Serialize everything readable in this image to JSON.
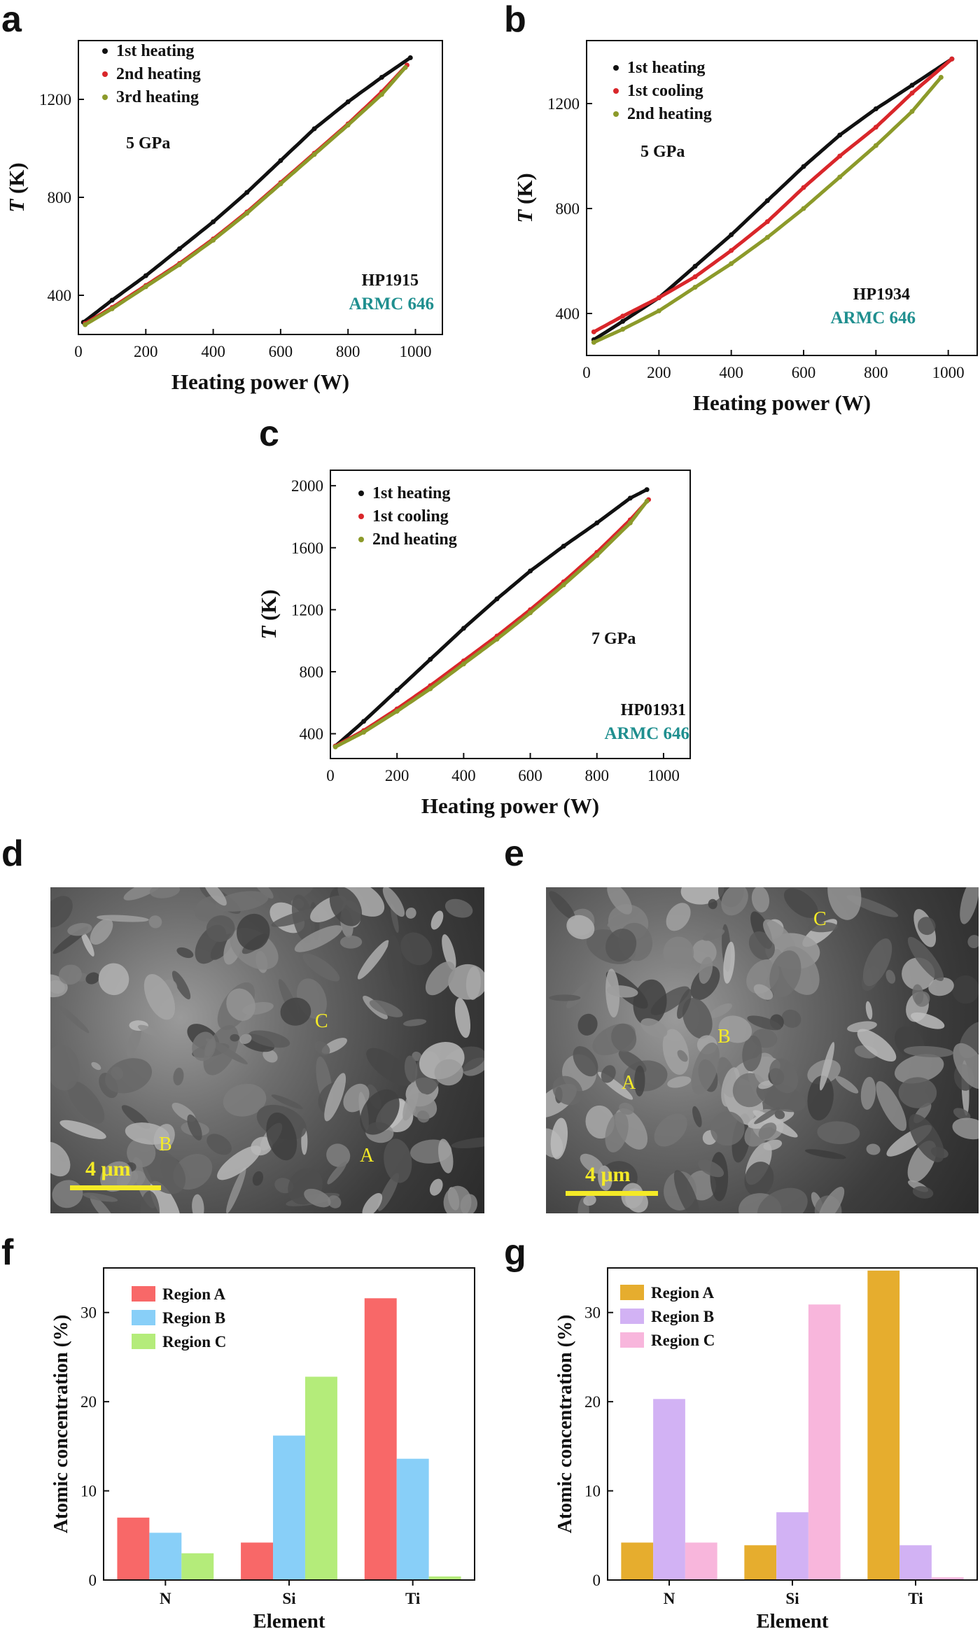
{
  "panels": {
    "a": "a",
    "b": "b",
    "c": "c",
    "d": "d",
    "e": "e",
    "f": "f",
    "g": "g"
  },
  "colors": {
    "black": "#111111",
    "red": "#d9262a",
    "olive": "#8c9a2a",
    "teal": "#1f8f8f",
    "regionA_f": "#f86868",
    "regionB_f": "#88cff8",
    "regionC_f": "#b4ec7a",
    "regionA_g": "#e6ad2e",
    "regionB_g": "#d2b2f4",
    "regionC_g": "#f8b6dc",
    "sem_label": "#f4ea27"
  },
  "chart_data": [
    {
      "id": "a",
      "type": "line",
      "xlabel": "Heating power (W)",
      "ylabel_italic": "T",
      "ylabel_rest": " (K)",
      "xlim": [
        0,
        1080
      ],
      "ylim": [
        240,
        1440
      ],
      "xticks": [
        0,
        200,
        400,
        600,
        800,
        1000
      ],
      "yticks": [
        400,
        800,
        1200
      ],
      "annotation": "5 GPa",
      "sample_id": "HP1915",
      "material": "ARMC 646",
      "legend": "top-left",
      "series": [
        {
          "name": "1st heating",
          "color": "black",
          "x": [
            15,
            100,
            200,
            300,
            400,
            500,
            600,
            700,
            800,
            900,
            985
          ],
          "y": [
            290,
            380,
            480,
            590,
            700,
            820,
            950,
            1080,
            1190,
            1290,
            1370
          ]
        },
        {
          "name": "2nd heating",
          "color": "red",
          "x": [
            20,
            100,
            200,
            300,
            400,
            500,
            600,
            700,
            800,
            900,
            975
          ],
          "y": [
            285,
            350,
            440,
            530,
            630,
            740,
            860,
            980,
            1100,
            1230,
            1340
          ]
        },
        {
          "name": "3rd heating",
          "color": "olive",
          "x": [
            20,
            100,
            200,
            300,
            400,
            500,
            600,
            700,
            800,
            900,
            970
          ],
          "y": [
            280,
            345,
            435,
            525,
            625,
            735,
            855,
            975,
            1095,
            1220,
            1330
          ]
        }
      ]
    },
    {
      "id": "b",
      "type": "line",
      "xlabel": "Heating power (W)",
      "ylabel_italic": "T",
      "ylabel_rest": " (K)",
      "xlim": [
        0,
        1080
      ],
      "ylim": [
        240,
        1440
      ],
      "xticks": [
        0,
        200,
        400,
        600,
        800,
        1000
      ],
      "yticks": [
        400,
        800,
        1200
      ],
      "annotation": "5 GPa",
      "sample_id": "HP1934",
      "material": "ARMC 646",
      "legend": "top-left",
      "series": [
        {
          "name": "1st heating",
          "color": "black",
          "x": [
            20,
            100,
            200,
            300,
            400,
            500,
            600,
            700,
            800,
            900,
            1010
          ],
          "y": [
            300,
            370,
            460,
            580,
            700,
            830,
            960,
            1080,
            1180,
            1270,
            1370
          ]
        },
        {
          "name": "1st cooling",
          "color": "red",
          "x": [
            20,
            100,
            200,
            300,
            400,
            500,
            600,
            700,
            800,
            900,
            1010
          ],
          "y": [
            330,
            390,
            460,
            540,
            640,
            750,
            880,
            1000,
            1110,
            1240,
            1370
          ]
        },
        {
          "name": "2nd heating",
          "color": "olive",
          "x": [
            20,
            100,
            200,
            300,
            400,
            500,
            600,
            700,
            800,
            900,
            980
          ],
          "y": [
            290,
            340,
            410,
            500,
            590,
            690,
            800,
            920,
            1040,
            1170,
            1300
          ]
        }
      ]
    },
    {
      "id": "c",
      "type": "line",
      "xlabel": "Heating power (W)",
      "ylabel_italic": "T",
      "ylabel_rest": " (K)",
      "xlim": [
        0,
        1080
      ],
      "ylim": [
        240,
        2100
      ],
      "xticks": [
        0,
        200,
        400,
        600,
        800,
        1000
      ],
      "yticks": [
        400,
        800,
        1200,
        1600,
        2000
      ],
      "annotation": "7 GPa",
      "sample_id": "HP01931",
      "material": "ARMC 646",
      "legend": "top-left",
      "series": [
        {
          "name": "1st heating",
          "color": "black",
          "x": [
            15,
            100,
            200,
            300,
            400,
            500,
            600,
            700,
            800,
            900,
            950
          ],
          "y": [
            320,
            480,
            680,
            880,
            1080,
            1270,
            1450,
            1610,
            1760,
            1920,
            1975
          ]
        },
        {
          "name": "1st cooling",
          "color": "red",
          "x": [
            15,
            100,
            200,
            300,
            400,
            500,
            600,
            700,
            800,
            900,
            955
          ],
          "y": [
            320,
            420,
            560,
            710,
            870,
            1030,
            1200,
            1380,
            1570,
            1780,
            1910
          ]
        },
        {
          "name": "2nd heating",
          "color": "olive",
          "x": [
            15,
            100,
            200,
            300,
            400,
            500,
            600,
            700,
            800,
            900,
            950
          ],
          "y": [
            315,
            410,
            545,
            690,
            850,
            1010,
            1180,
            1360,
            1550,
            1760,
            1900
          ]
        }
      ]
    },
    {
      "id": "f",
      "type": "bar",
      "xlabel": "Element",
      "ylabel": "Atomic concentration (%)",
      "categories": [
        "N",
        "Si",
        "Ti"
      ],
      "ylim": [
        0,
        35
      ],
      "yticks": [
        0,
        10,
        20,
        30
      ],
      "legend": "top-left",
      "series": [
        {
          "name": "Region A",
          "color": "regionA_f",
          "values": [
            7.0,
            4.2,
            31.6
          ]
        },
        {
          "name": "Region B",
          "color": "regionB_f",
          "values": [
            5.3,
            16.2,
            13.6
          ]
        },
        {
          "name": "Region C",
          "color": "regionC_f",
          "values": [
            3.0,
            22.8,
            0.4
          ]
        }
      ]
    },
    {
      "id": "g",
      "type": "bar",
      "xlabel": "Element",
      "ylabel": "Atomic concentration (%)",
      "categories": [
        "N",
        "Si",
        "Ti"
      ],
      "ylim": [
        0,
        35
      ],
      "yticks": [
        0,
        10,
        20,
        30
      ],
      "legend": "top-left",
      "series": [
        {
          "name": "Region A",
          "color": "regionA_g",
          "values": [
            4.2,
            3.9,
            34.7
          ]
        },
        {
          "name": "Region B",
          "color": "regionB_g",
          "values": [
            20.3,
            7.6,
            3.9
          ]
        },
        {
          "name": "Region C",
          "color": "regionC_g",
          "values": [
            4.2,
            30.9,
            0.3
          ]
        }
      ]
    }
  ],
  "sem": {
    "d": {
      "labels": [
        "A",
        "B",
        "C"
      ],
      "scale": "4 μm"
    },
    "e": {
      "labels": [
        "A",
        "B",
        "C"
      ],
      "scale": "4 μm"
    }
  }
}
